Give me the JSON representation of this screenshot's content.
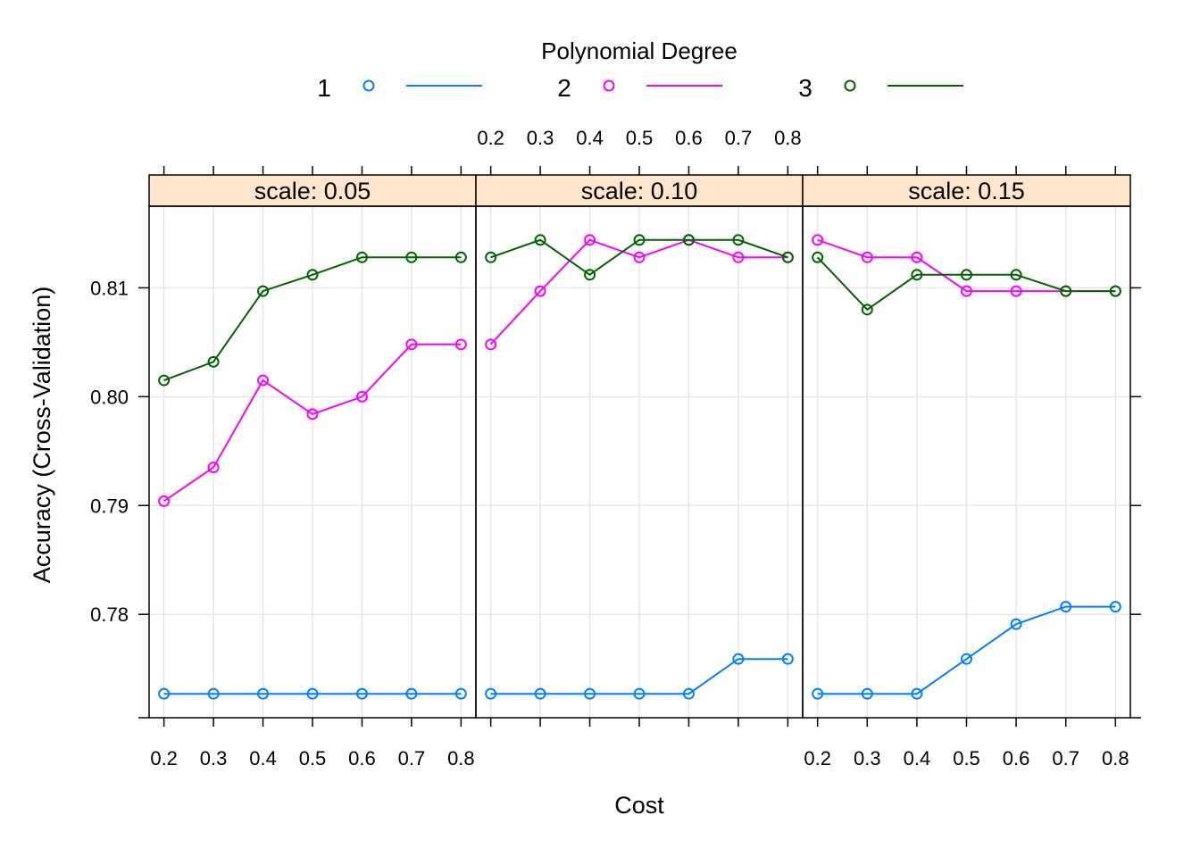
{
  "chart_data": {
    "type": "line",
    "legend": {
      "title": "Polynomial Degree",
      "placement": "top",
      "entries": [
        {
          "name": "1",
          "color": "#0080ff"
        },
        {
          "name": "2",
          "color": "#ff00ff"
        },
        {
          "name": "3",
          "color": "#006400"
        }
      ]
    },
    "xlabel": "Cost",
    "ylabel": "Accuracy (Cross-Validation)",
    "x": [
      0.2,
      0.3,
      0.4,
      0.5,
      0.6,
      0.7,
      0.8
    ],
    "x_tick_labels": [
      "0.2",
      "0.3",
      "0.4",
      "0.5",
      "0.6",
      "0.7",
      "0.8"
    ],
    "xlim": [
      0.17,
      0.83
    ],
    "ylim": [
      0.7705,
      0.8175
    ],
    "y_ticks": [
      0.78,
      0.79,
      0.8,
      0.81
    ],
    "y_tick_labels": [
      "0.78",
      "0.79",
      "0.80",
      "0.81"
    ],
    "grid": true,
    "strip_color": "#ffe5cc",
    "panels": [
      {
        "strip": "scale: 0.05",
        "series": [
          {
            "name": "1",
            "color": "#0080ff",
            "values": [
              0.7727,
              0.7727,
              0.7727,
              0.7727,
              0.7727,
              0.7727,
              0.7727
            ]
          },
          {
            "name": "2",
            "color": "#ff00ff",
            "values": [
              0.7904,
              0.7935,
              0.8015,
              0.7984,
              0.8,
              0.8048,
              0.8048
            ]
          },
          {
            "name": "3",
            "color": "#006400",
            "values": [
              0.8015,
              0.8032,
              0.8097,
              0.8112,
              0.8128,
              0.8128,
              0.8128
            ]
          }
        ]
      },
      {
        "strip": "scale: 0.10",
        "series": [
          {
            "name": "1",
            "color": "#0080ff",
            "values": [
              0.7727,
              0.7727,
              0.7727,
              0.7727,
              0.7727,
              0.7759,
              0.7759
            ]
          },
          {
            "name": "2",
            "color": "#ff00ff",
            "values": [
              0.8048,
              0.8097,
              0.8144,
              0.8128,
              0.8144,
              0.8128,
              0.8128
            ]
          },
          {
            "name": "3",
            "color": "#006400",
            "values": [
              0.8128,
              0.8144,
              0.8112,
              0.8144,
              0.8144,
              0.8144,
              0.8128
            ]
          }
        ]
      },
      {
        "strip": "scale: 0.15",
        "series": [
          {
            "name": "1",
            "color": "#0080ff",
            "values": [
              0.7727,
              0.7727,
              0.7727,
              0.7759,
              0.7791,
              0.7807,
              0.7807
            ]
          },
          {
            "name": "2",
            "color": "#ff00ff",
            "values": [
              0.8144,
              0.8128,
              0.8128,
              0.8097,
              0.8097,
              0.8097,
              0.8097
            ]
          },
          {
            "name": "3",
            "color": "#006400",
            "values": [
              0.8128,
              0.808,
              0.8112,
              0.8112,
              0.8112,
              0.8097,
              0.8097
            ]
          }
        ]
      }
    ]
  }
}
